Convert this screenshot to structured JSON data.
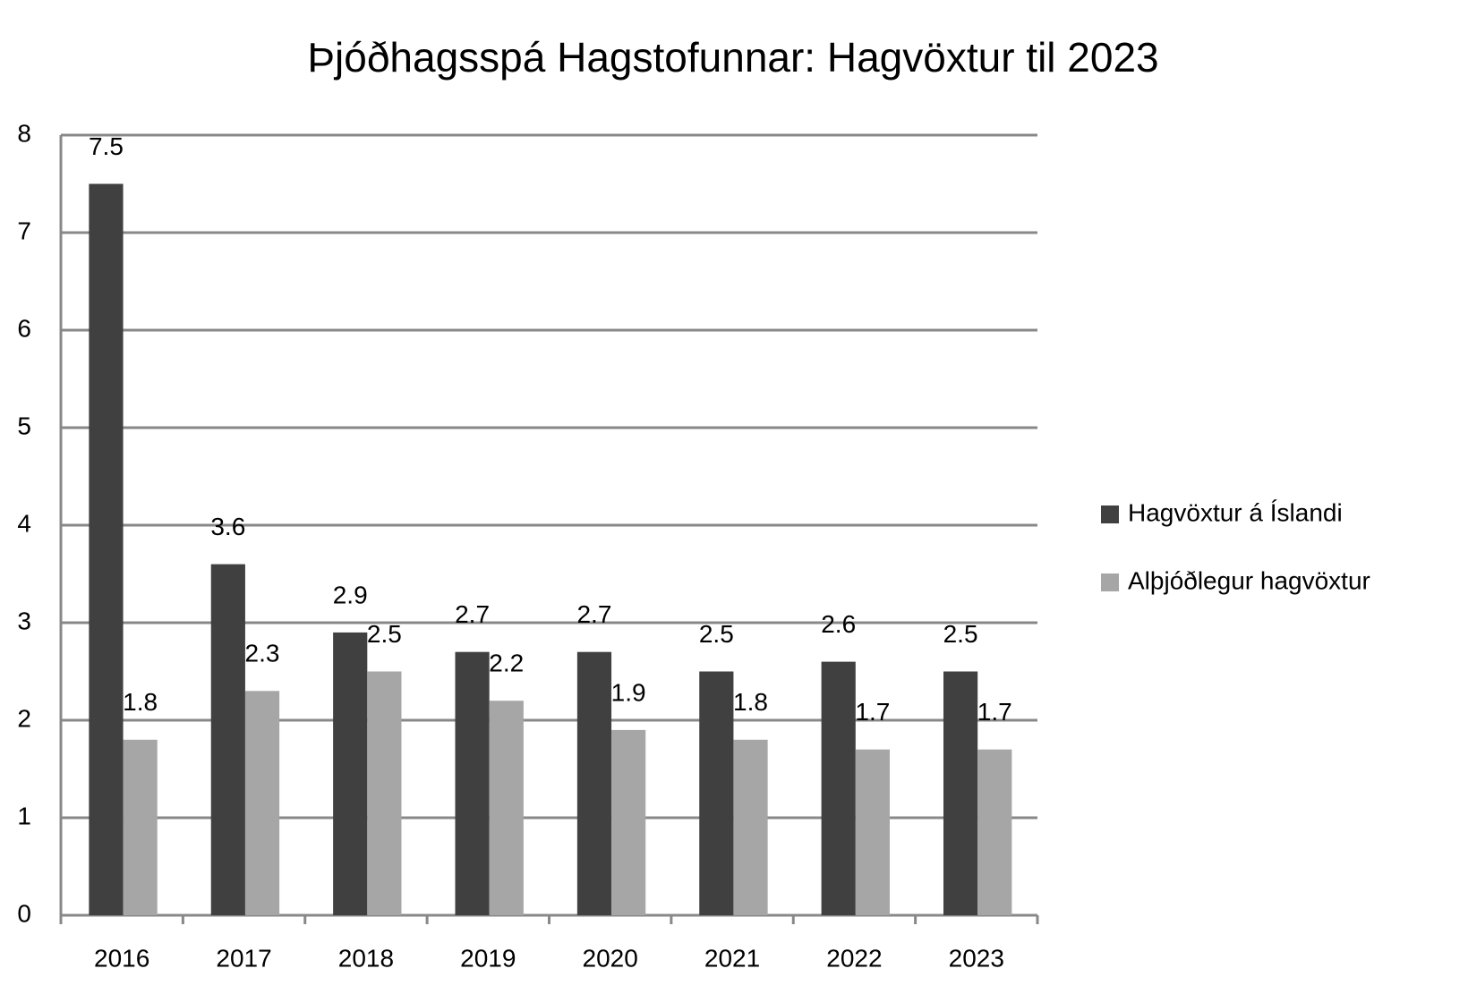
{
  "chart_data": {
    "type": "bar",
    "title": "Þjóðhagsspá Hagstofunnar: Hagvöxtur til 2023",
    "categories": [
      "2016",
      "2017",
      "2018",
      "2019",
      "2020",
      "2021",
      "2022",
      "2023"
    ],
    "series": [
      {
        "name": "Hagvöxtur á Íslandi",
        "color": "#404040",
        "values": [
          7.5,
          3.6,
          2.9,
          2.7,
          2.7,
          2.5,
          2.6,
          2.5
        ]
      },
      {
        "name": "Alþjóðlegur hagvöxtur",
        "color": "#a6a6a6",
        "values": [
          1.8,
          2.3,
          2.5,
          2.2,
          1.9,
          1.8,
          1.7,
          1.7
        ]
      }
    ],
    "ylim": [
      0,
      8
    ],
    "yticks": [
      0,
      1,
      2,
      3,
      4,
      5,
      6,
      7,
      8
    ],
    "grid": true,
    "legend": "right"
  }
}
